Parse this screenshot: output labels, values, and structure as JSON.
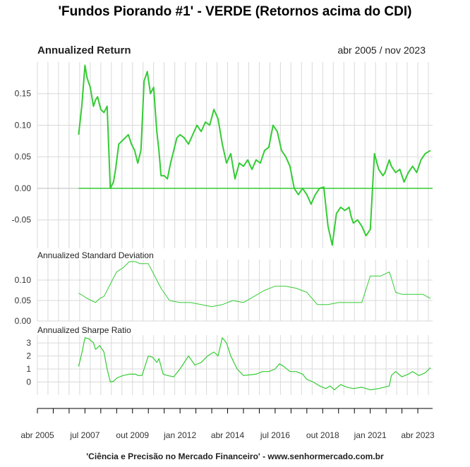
{
  "title": "'Fundos Piorando #1' - VERDE (Retornos acima do CDI)",
  "period": "abr 2005 / nov 2023",
  "footer": "'Ciência e Precisão no Mercado Financeiro' - www.senhormercado.com.br",
  "colors": {
    "series": "#33cc33",
    "grid": "#d9d9d9",
    "axis": "#000000",
    "zero": "#33cc33"
  },
  "chart_data": [
    {
      "type": "line",
      "title": "Annualized Return",
      "ylim": [
        -0.095,
        0.2
      ],
      "yticks": [
        -0.05,
        0.0,
        0.05,
        0.1,
        0.15
      ],
      "ytick_labels": [
        "-0.05",
        "0.00",
        "0.05",
        "0.10",
        "0.15"
      ],
      "hline": 0.0,
      "series": [
        {
          "name": "VERDE",
          "x": [
            2007.2,
            2007.35,
            2007.5,
            2007.6,
            2007.75,
            2007.9,
            2008.0,
            2008.1,
            2008.25,
            2008.4,
            2008.55,
            2008.7,
            2008.85,
            2008.95,
            2009.1,
            2009.25,
            2009.4,
            2009.55,
            2009.7,
            2009.85,
            2010.0,
            2010.15,
            2010.3,
            2010.45,
            2010.6,
            2010.75,
            2010.9,
            2011.0,
            2011.1,
            2011.25,
            2011.4,
            2011.55,
            2011.7,
            2011.85,
            2012.0,
            2012.2,
            2012.4,
            2012.6,
            2012.8,
            2013.0,
            2013.2,
            2013.4,
            2013.6,
            2013.8,
            2014.0,
            2014.2,
            2014.4,
            2014.6,
            2014.8,
            2015.0,
            2015.2,
            2015.4,
            2015.6,
            2015.8,
            2016.0,
            2016.2,
            2016.4,
            2016.6,
            2016.8,
            2017.0,
            2017.2,
            2017.4,
            2017.6,
            2017.8,
            2018.0,
            2018.2,
            2018.4,
            2018.6,
            2018.8,
            2019.0,
            2019.2,
            2019.4,
            2019.6,
            2019.8,
            2020.0,
            2020.1,
            2020.2,
            2020.4,
            2020.6,
            2020.8,
            2021.0,
            2021.2,
            2021.4,
            2021.6,
            2021.7,
            2021.8,
            2021.9,
            2022.0,
            2022.2,
            2022.4,
            2022.6,
            2022.8,
            2023.0,
            2023.2,
            2023.4,
            2023.6,
            2023.85
          ],
          "values": [
            0.085,
            0.13,
            0.195,
            0.175,
            0.16,
            0.13,
            0.14,
            0.145,
            0.125,
            0.12,
            0.13,
            0.0,
            0.01,
            0.03,
            0.07,
            0.075,
            0.08,
            0.085,
            0.07,
            0.06,
            0.04,
            0.06,
            0.17,
            0.185,
            0.15,
            0.16,
            0.09,
            0.06,
            0.02,
            0.02,
            0.015,
            0.04,
            0.06,
            0.08,
            0.085,
            0.08,
            0.07,
            0.085,
            0.1,
            0.09,
            0.105,
            0.1,
            0.125,
            0.11,
            0.07,
            0.04,
            0.055,
            0.015,
            0.04,
            0.035,
            0.045,
            0.03,
            0.045,
            0.04,
            0.06,
            0.065,
            0.1,
            0.09,
            0.06,
            0.05,
            0.035,
            0.0,
            -0.01,
            0.0,
            -0.01,
            -0.025,
            -0.01,
            0.0,
            0.002,
            -0.06,
            -0.09,
            -0.04,
            -0.03,
            -0.035,
            -0.03,
            -0.045,
            -0.055,
            -0.05,
            -0.06,
            -0.075,
            -0.065,
            0.055,
            0.03,
            0.02,
            0.025,
            0.035,
            0.045,
            0.035,
            0.025,
            0.03,
            0.01,
            0.025,
            0.035,
            0.025,
            0.045,
            0.055,
            0.06
          ]
        }
      ]
    },
    {
      "type": "line",
      "title": "Annualized Standard Deviation",
      "ylim": [
        0.0,
        0.15
      ],
      "yticks": [
        0.0,
        0.05,
        0.1
      ],
      "ytick_labels": [
        "0.00",
        "0.05",
        "0.10"
      ],
      "series": [
        {
          "name": "VERDE",
          "x": [
            2007.2,
            2007.4,
            2007.6,
            2007.8,
            2008.0,
            2008.2,
            2008.4,
            2008.6,
            2008.8,
            2009.0,
            2009.3,
            2009.6,
            2009.9,
            2010.1,
            2010.3,
            2010.5,
            2010.7,
            2010.9,
            2011.1,
            2011.5,
            2012.0,
            2012.5,
            2013.0,
            2013.5,
            2014.0,
            2014.5,
            2015.0,
            2015.5,
            2016.0,
            2016.5,
            2017.0,
            2017.5,
            2018.0,
            2018.5,
            2019.0,
            2019.5,
            2020.0,
            2020.3,
            2020.6,
            2021.0,
            2021.5,
            2021.9,
            2022.0,
            2022.2,
            2022.5,
            2023.0,
            2023.5,
            2023.85
          ],
          "values": [
            0.068,
            0.062,
            0.055,
            0.05,
            0.045,
            0.055,
            0.06,
            0.08,
            0.1,
            0.12,
            0.13,
            0.145,
            0.145,
            0.14,
            0.14,
            0.14,
            0.12,
            0.1,
            0.08,
            0.05,
            0.045,
            0.045,
            0.04,
            0.035,
            0.04,
            0.05,
            0.045,
            0.06,
            0.075,
            0.085,
            0.085,
            0.08,
            0.07,
            0.04,
            0.04,
            0.045,
            0.045,
            0.045,
            0.045,
            0.11,
            0.11,
            0.12,
            0.105,
            0.07,
            0.065,
            0.065,
            0.065,
            0.055
          ]
        }
      ]
    },
    {
      "type": "line",
      "title": "Annualized Sharpe Ratio",
      "ylim": [
        -1.0,
        3.6
      ],
      "yticks": [
        0,
        1,
        2,
        3
      ],
      "ytick_labels": [
        "0",
        "1",
        "2",
        "3"
      ],
      "series": [
        {
          "name": "VERDE",
          "x": [
            2007.2,
            2007.35,
            2007.5,
            2007.7,
            2007.9,
            2008.0,
            2008.2,
            2008.4,
            2008.55,
            2008.7,
            2008.85,
            2009.0,
            2009.3,
            2009.6,
            2009.9,
            2010.0,
            2010.2,
            2010.3,
            2010.5,
            2010.7,
            2010.9,
            2011.0,
            2011.2,
            2011.4,
            2011.7,
            2012.0,
            2012.4,
            2012.7,
            2013.0,
            2013.3,
            2013.6,
            2013.8,
            2014.0,
            2014.2,
            2014.4,
            2014.7,
            2015.0,
            2015.3,
            2015.6,
            2015.9,
            2016.2,
            2016.5,
            2016.7,
            2016.9,
            2017.2,
            2017.5,
            2017.8,
            2018.0,
            2018.3,
            2018.6,
            2018.9,
            2019.1,
            2019.3,
            2019.6,
            2019.9,
            2020.2,
            2020.6,
            2021.0,
            2021.4,
            2021.9,
            2022.0,
            2022.2,
            2022.5,
            2022.8,
            2023.0,
            2023.3,
            2023.6,
            2023.85
          ],
          "values": [
            1.2,
            2.2,
            3.4,
            3.3,
            3.0,
            2.5,
            2.8,
            2.3,
            1.0,
            0.0,
            0.05,
            0.3,
            0.5,
            0.6,
            0.6,
            0.5,
            0.5,
            1.0,
            2.0,
            1.9,
            1.5,
            1.8,
            0.6,
            0.5,
            0.4,
            1.0,
            2.0,
            1.3,
            1.5,
            2.0,
            2.3,
            2.0,
            3.4,
            3.0,
            2.0,
            1.0,
            0.5,
            0.55,
            0.6,
            0.8,
            0.8,
            1.0,
            1.4,
            1.2,
            0.8,
            0.8,
            0.6,
            0.2,
            0.0,
            -0.3,
            -0.5,
            -0.3,
            -0.6,
            -0.2,
            -0.4,
            -0.5,
            -0.4,
            -0.6,
            -0.5,
            -0.3,
            0.5,
            0.8,
            0.4,
            0.6,
            0.8,
            0.5,
            0.7,
            1.1
          ]
        }
      ]
    }
  ],
  "x_axis": {
    "xlim": [
      2005.25,
      2023.95
    ],
    "labels": [
      "abr 2005",
      "jul 2007",
      "out 2009",
      "jan 2012",
      "abr 2014",
      "jul 2016",
      "out 2018",
      "jan 2021",
      "abr 2023"
    ],
    "label_positions": [
      2005.25,
      2007.5,
      2009.75,
      2012.0,
      2014.25,
      2016.5,
      2018.75,
      2021.0,
      2023.25
    ]
  }
}
